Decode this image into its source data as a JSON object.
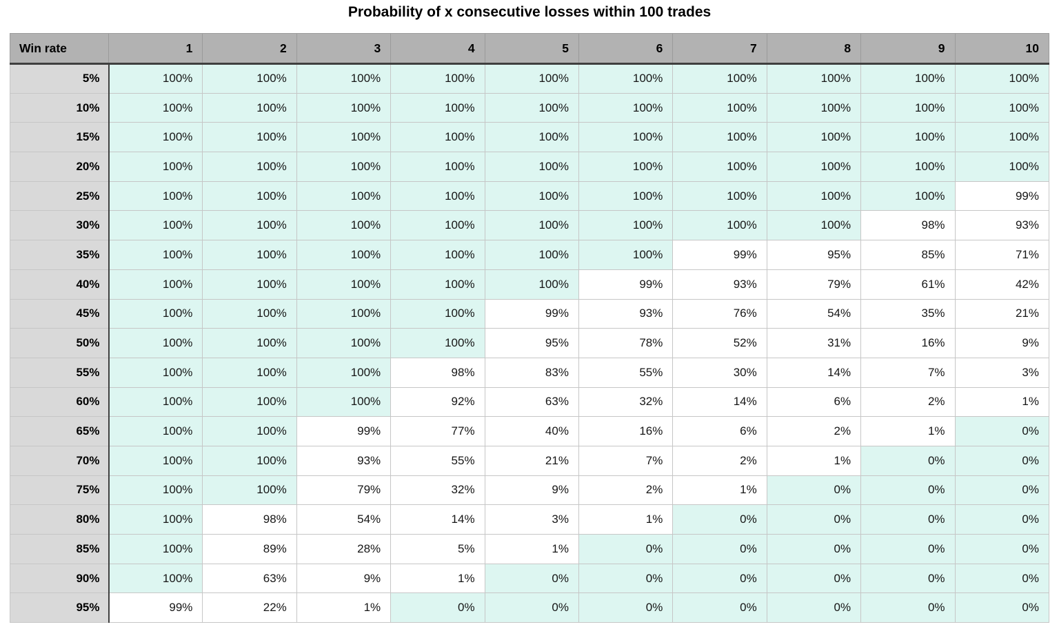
{
  "chart_data": {
    "type": "table",
    "title": "Probability of x consecutive losses within 100 trades",
    "row_header_label": "Win rate",
    "column_headers": [
      "1",
      "2",
      "3",
      "4",
      "5",
      "6",
      "7",
      "8",
      "9",
      "10"
    ],
    "rows": [
      {
        "win_rate": "5%",
        "values": [
          "100%",
          "100%",
          "100%",
          "100%",
          "100%",
          "100%",
          "100%",
          "100%",
          "100%",
          "100%"
        ]
      },
      {
        "win_rate": "10%",
        "values": [
          "100%",
          "100%",
          "100%",
          "100%",
          "100%",
          "100%",
          "100%",
          "100%",
          "100%",
          "100%"
        ]
      },
      {
        "win_rate": "15%",
        "values": [
          "100%",
          "100%",
          "100%",
          "100%",
          "100%",
          "100%",
          "100%",
          "100%",
          "100%",
          "100%"
        ]
      },
      {
        "win_rate": "20%",
        "values": [
          "100%",
          "100%",
          "100%",
          "100%",
          "100%",
          "100%",
          "100%",
          "100%",
          "100%",
          "100%"
        ]
      },
      {
        "win_rate": "25%",
        "values": [
          "100%",
          "100%",
          "100%",
          "100%",
          "100%",
          "100%",
          "100%",
          "100%",
          "100%",
          "99%"
        ]
      },
      {
        "win_rate": "30%",
        "values": [
          "100%",
          "100%",
          "100%",
          "100%",
          "100%",
          "100%",
          "100%",
          "100%",
          "98%",
          "93%"
        ]
      },
      {
        "win_rate": "35%",
        "values": [
          "100%",
          "100%",
          "100%",
          "100%",
          "100%",
          "100%",
          "99%",
          "95%",
          "85%",
          "71%"
        ]
      },
      {
        "win_rate": "40%",
        "values": [
          "100%",
          "100%",
          "100%",
          "100%",
          "100%",
          "99%",
          "93%",
          "79%",
          "61%",
          "42%"
        ]
      },
      {
        "win_rate": "45%",
        "values": [
          "100%",
          "100%",
          "100%",
          "100%",
          "99%",
          "93%",
          "76%",
          "54%",
          "35%",
          "21%"
        ]
      },
      {
        "win_rate": "50%",
        "values": [
          "100%",
          "100%",
          "100%",
          "100%",
          "95%",
          "78%",
          "52%",
          "31%",
          "16%",
          "9%"
        ]
      },
      {
        "win_rate": "55%",
        "values": [
          "100%",
          "100%",
          "100%",
          "98%",
          "83%",
          "55%",
          "30%",
          "14%",
          "7%",
          "3%"
        ]
      },
      {
        "win_rate": "60%",
        "values": [
          "100%",
          "100%",
          "100%",
          "92%",
          "63%",
          "32%",
          "14%",
          "6%",
          "2%",
          "1%"
        ]
      },
      {
        "win_rate": "65%",
        "values": [
          "100%",
          "100%",
          "99%",
          "77%",
          "40%",
          "16%",
          "6%",
          "2%",
          "1%",
          "0%"
        ]
      },
      {
        "win_rate": "70%",
        "values": [
          "100%",
          "100%",
          "93%",
          "55%",
          "21%",
          "7%",
          "2%",
          "1%",
          "0%",
          "0%"
        ]
      },
      {
        "win_rate": "75%",
        "values": [
          "100%",
          "100%",
          "79%",
          "32%",
          "9%",
          "2%",
          "1%",
          "0%",
          "0%",
          "0%"
        ]
      },
      {
        "win_rate": "80%",
        "values": [
          "100%",
          "98%",
          "54%",
          "14%",
          "3%",
          "1%",
          "0%",
          "0%",
          "0%",
          "0%"
        ]
      },
      {
        "win_rate": "85%",
        "values": [
          "100%",
          "89%",
          "28%",
          "5%",
          "1%",
          "0%",
          "0%",
          "0%",
          "0%",
          "0%"
        ]
      },
      {
        "win_rate": "90%",
        "values": [
          "100%",
          "63%",
          "9%",
          "1%",
          "0%",
          "0%",
          "0%",
          "0%",
          "0%",
          "0%"
        ]
      },
      {
        "win_rate": "95%",
        "values": [
          "99%",
          "22%",
          "1%",
          "0%",
          "0%",
          "0%",
          "0%",
          "0%",
          "0%",
          "0%"
        ]
      }
    ],
    "highlight_rule": {
      "highlighted_values": [
        "100%",
        "0%"
      ],
      "highlight_color": "#ddf6f1",
      "plain_color": "#ffffff"
    },
    "layout_hints": {
      "grid": true,
      "row_headers_bold": true,
      "values_alignment": "right"
    }
  },
  "colors": {
    "header_bg": "#b2b2b2",
    "row_header_bg": "#d9d9d9",
    "cell_highlight_bg": "#ddf6f1",
    "cell_plain_bg": "#ffffff",
    "grid_line": "#c6c6c6",
    "header_divider": "#3f3f3f",
    "text": "#000000"
  }
}
